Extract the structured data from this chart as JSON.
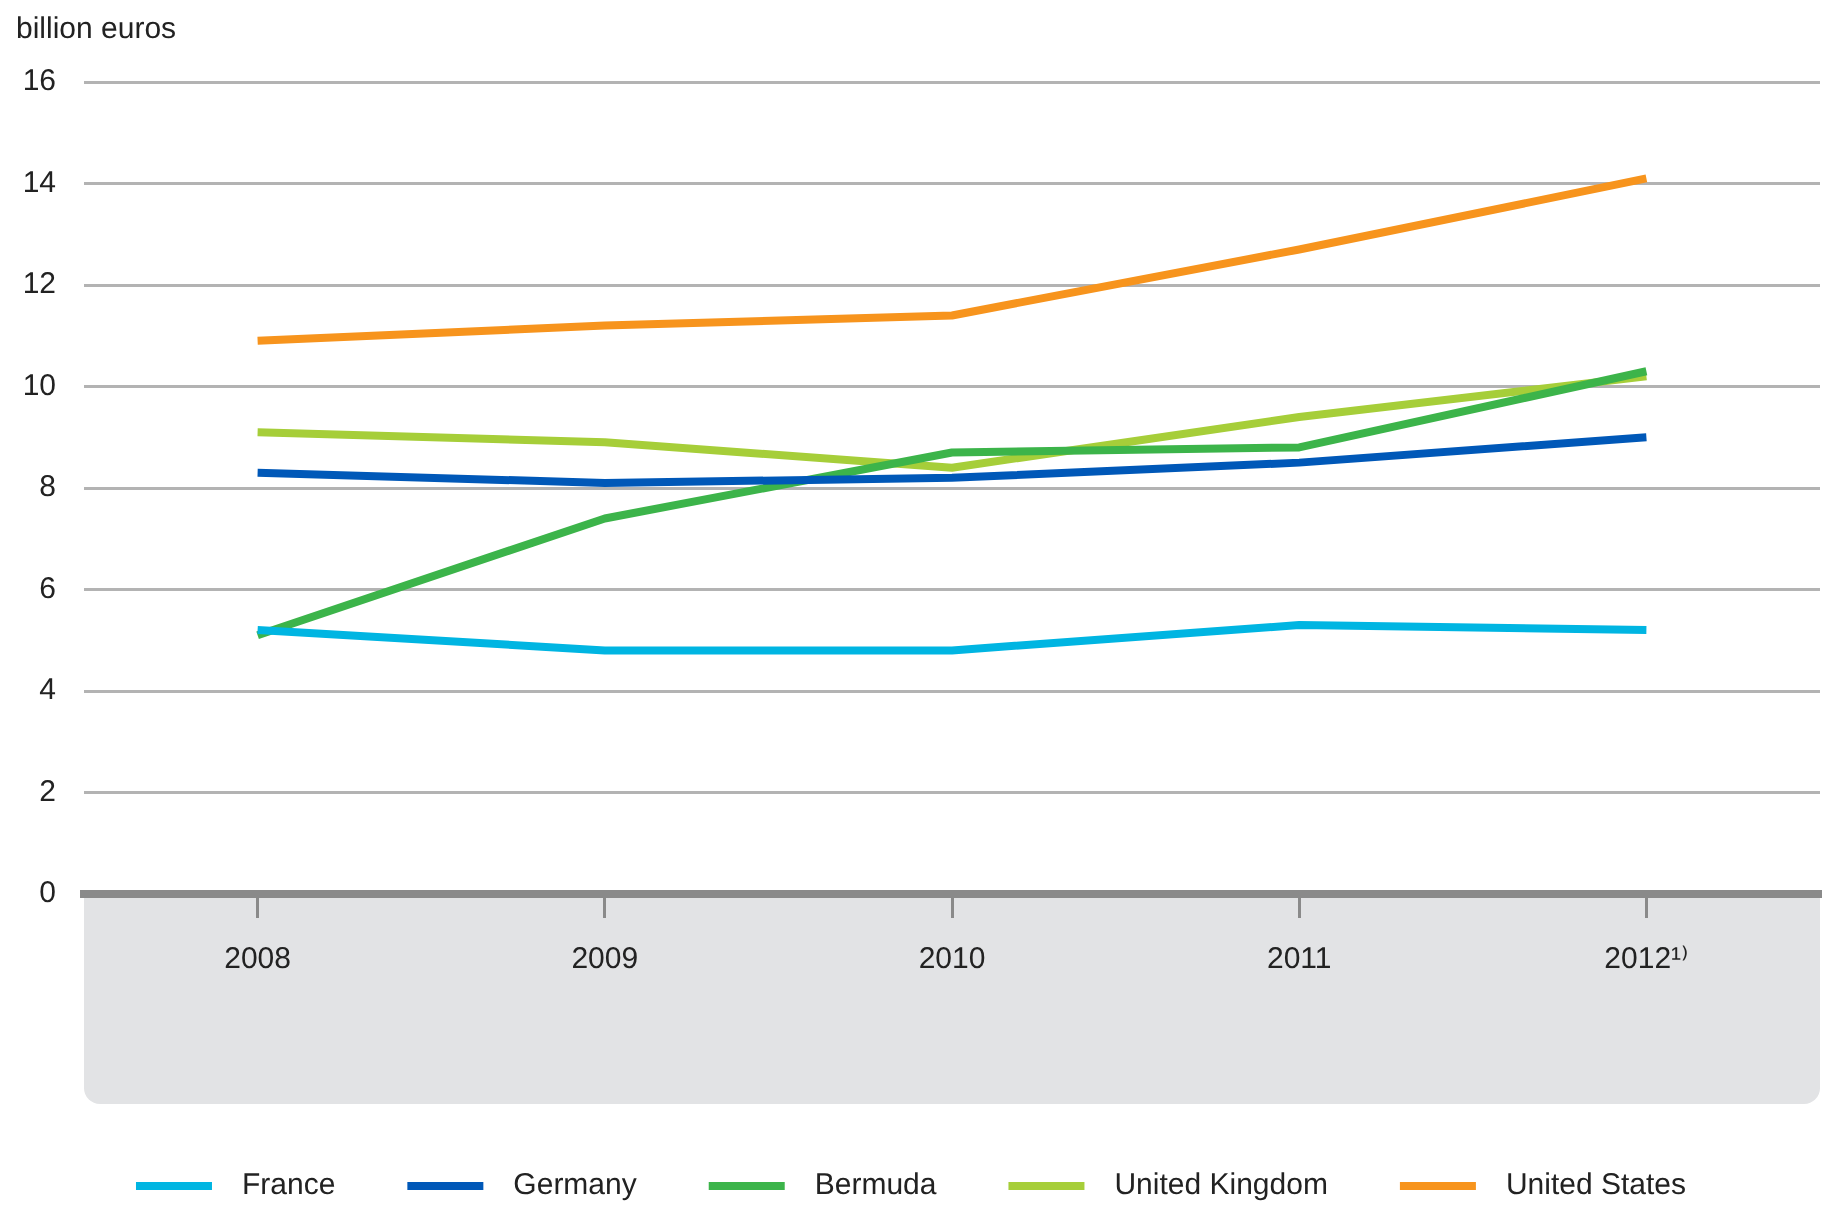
{
  "chart_data": {
    "type": "line",
    "ylabel": "billion euros",
    "categories": [
      "2008",
      "2009",
      "2010",
      "2011",
      "2012¹⁾"
    ],
    "series": [
      {
        "name": "France",
        "color": "#00b5e2",
        "values": [
          5.2,
          4.8,
          4.8,
          5.3,
          5.2
        ]
      },
      {
        "name": "Germany",
        "color": "#0058b8",
        "values": [
          8.3,
          8.1,
          8.2,
          8.5,
          9.0
        ]
      },
      {
        "name": "Bermuda",
        "color": "#3cb44a",
        "values": [
          5.1,
          7.4,
          8.7,
          8.8,
          10.3
        ]
      },
      {
        "name": "United Kingdom",
        "color": "#a6ce39",
        "values": [
          9.1,
          8.9,
          8.4,
          9.4,
          10.2
        ]
      },
      {
        "name": "United States",
        "color": "#f7941d",
        "values": [
          10.9,
          11.2,
          11.4,
          12.7,
          14.1
        ]
      }
    ],
    "ylim": [
      0,
      16
    ],
    "yticks": [
      0,
      2,
      4,
      6,
      8,
      10,
      12,
      14,
      16
    ],
    "grid": "y",
    "legend": "bottom",
    "marker": "none",
    "line_style": "solid"
  }
}
